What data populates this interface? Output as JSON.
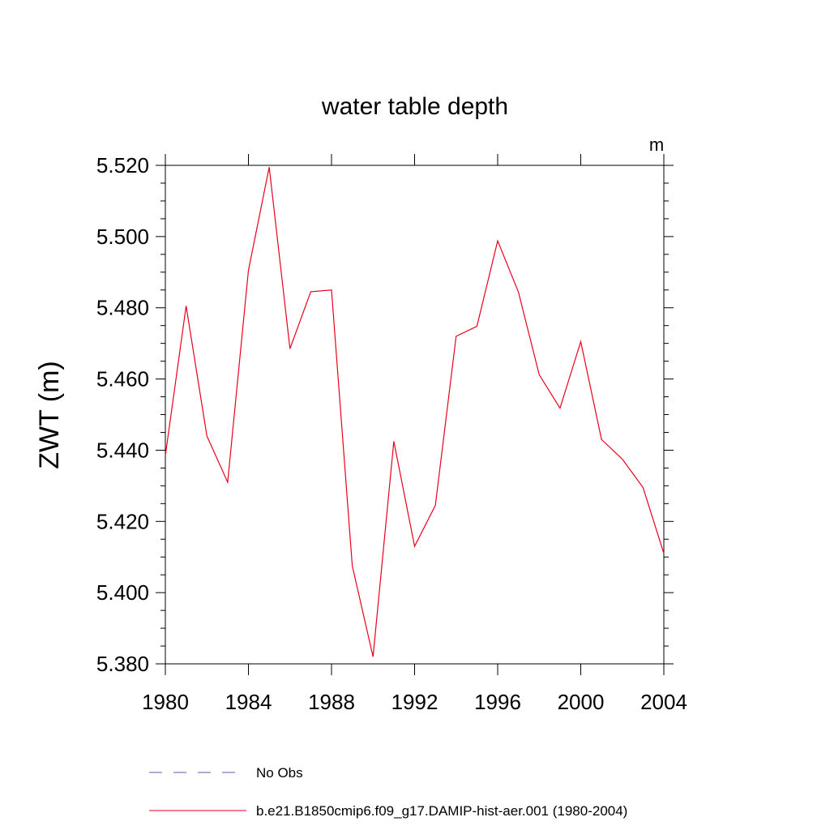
{
  "chart_data": {
    "type": "line",
    "title": "water table depth",
    "units_label": "m",
    "ylabel": "ZWT  (m)",
    "xlabel": "",
    "xlim": [
      1980,
      2004
    ],
    "ylim": [
      5.38,
      5.52
    ],
    "x_ticks": [
      1980,
      1984,
      1988,
      1992,
      1996,
      2000,
      2004
    ],
    "x_tick_labels": [
      "1980",
      "1984",
      "1988",
      "1992",
      "1996",
      "2000",
      "2004"
    ],
    "y_ticks": [
      5.38,
      5.4,
      5.42,
      5.44,
      5.46,
      5.48,
      5.5,
      5.52
    ],
    "y_tick_labels": [
      "5.380",
      "5.400",
      "5.420",
      "5.440",
      "5.460",
      "5.480",
      "5.500",
      "5.520"
    ],
    "grid": false,
    "legend_position": "bottom",
    "series": [
      {
        "name": "b.e21.B1850cmip6.f09_g17.DAMIP-hist-aer.001 (1980-2004)",
        "color": "#e8001c",
        "dash": "solid",
        "x": [
          1980,
          1981,
          1982,
          1983,
          1984,
          1985,
          1986,
          1987,
          1988,
          1989,
          1990,
          1991,
          1992,
          1993,
          1994,
          1995,
          1996,
          1997,
          1998,
          1999,
          2000,
          2001,
          2002,
          2003,
          2004
        ],
        "values": [
          5.4385,
          5.4805,
          5.444,
          5.431,
          5.4905,
          5.5195,
          5.4685,
          5.4845,
          5.485,
          5.4075,
          5.382,
          5.4425,
          5.413,
          5.4245,
          5.472,
          5.4748,
          5.4988,
          5.4844,
          5.4612,
          5.4518,
          5.4705,
          5.443,
          5.4375,
          5.4295,
          5.411
        ]
      }
    ],
    "legend": [
      {
        "label": "No Obs",
        "color": "#5a5aa8",
        "dash": "dashed"
      },
      {
        "label": "b.e21.B1850cmip6.f09_g17.DAMIP-hist-aer.001 (1980-2004)",
        "color": "#e8001c",
        "dash": "solid"
      }
    ]
  }
}
